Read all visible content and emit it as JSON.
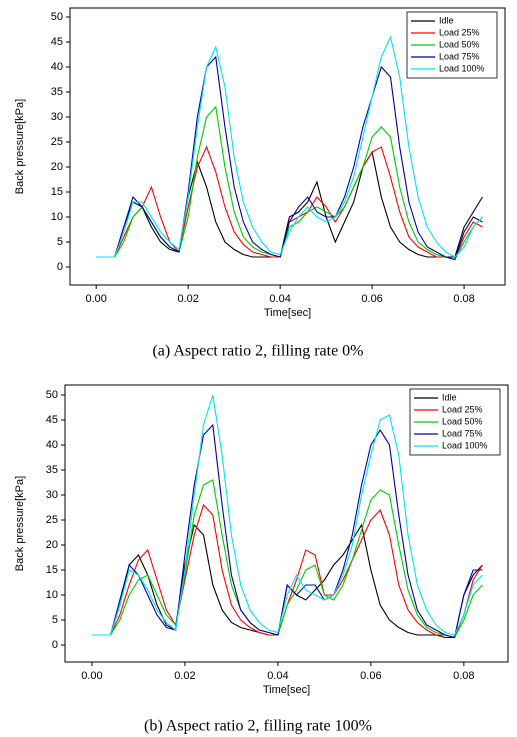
{
  "chart_data": [
    {
      "type": "line",
      "caption": "(a)  Aspect ratio 2,  filling rate  0%",
      "xlabel": "Time[sec]",
      "ylabel": "Back pressure[kPa]",
      "x": [
        0,
        0.002,
        0.004,
        0.006,
        0.008,
        0.01,
        0.012,
        0.014,
        0.016,
        0.018,
        0.02,
        0.022,
        0.024,
        0.026,
        0.028,
        0.03,
        0.032,
        0.034,
        0.036,
        0.038,
        0.04,
        0.042,
        0.044,
        0.046,
        0.048,
        0.05,
        0.052,
        0.054,
        0.056,
        0.058,
        0.06,
        0.062,
        0.064,
        0.066,
        0.068,
        0.07,
        0.072,
        0.074,
        0.076,
        0.078,
        0.08,
        0.082,
        0.084
      ],
      "xlim": [
        -0.0057,
        0.0889
      ],
      "xticks": [
        {
          "value": 0,
          "label": "0.00"
        },
        0.02,
        0.04,
        0.06,
        0.08
      ],
      "ylim": [
        -3.6,
        51.8
      ],
      "yticks": [
        0,
        5,
        10,
        15,
        20,
        25,
        30,
        35,
        40,
        45,
        50
      ],
      "grid": false,
      "legend": "upper right",
      "series": [
        {
          "name": "Idle",
          "color": "#000000",
          "values": [
            2,
            2,
            2,
            8,
            13,
            12,
            8,
            5,
            3.5,
            3,
            14,
            21,
            16,
            9,
            5,
            3.5,
            2.5,
            2,
            2,
            2,
            2,
            10,
            11,
            13,
            17,
            10,
            5,
            9,
            13,
            20,
            23,
            14,
            8,
            5,
            3.5,
            2.5,
            2,
            2,
            2,
            2,
            8,
            11,
            14
          ]
        },
        {
          "name": "Load 25%",
          "color": "#ff0000",
          "values": [
            2,
            2,
            2,
            6,
            10,
            12,
            16,
            10,
            5,
            3,
            12,
            20,
            24,
            19,
            12,
            7,
            4.5,
            3,
            2.5,
            2,
            2,
            9,
            10,
            11,
            14,
            12,
            9,
            12,
            16,
            20,
            23,
            24,
            18,
            11,
            6,
            4,
            3,
            2,
            2,
            1.5,
            6,
            9,
            8
          ]
        },
        {
          "name": "Load 50%",
          "color": "#00cc00",
          "values": [
            2,
            2,
            2,
            5,
            10,
            12,
            9,
            6,
            4,
            3,
            10,
            22,
            30,
            32,
            20,
            11,
            6,
            4,
            3,
            2.5,
            2,
            8,
            9,
            11,
            12,
            11,
            10,
            12,
            16,
            20,
            26,
            28,
            26,
            16,
            9,
            5,
            3.5,
            2.5,
            2,
            1.5,
            5,
            8,
            10
          ]
        },
        {
          "name": "Load 75%",
          "color": "#0000aa",
          "values": [
            2,
            2,
            2,
            8,
            14,
            12,
            9,
            6,
            4,
            3,
            15,
            30,
            40,
            42,
            28,
            16,
            9,
            5,
            3.5,
            2.5,
            2,
            9,
            12,
            14,
            11,
            10,
            10,
            14,
            20,
            28,
            34,
            40,
            38,
            24,
            13,
            7,
            4,
            3,
            2,
            1.5,
            7,
            10,
            9
          ]
        },
        {
          "name": "Load 100%",
          "color": "#00e5ee",
          "values": [
            2,
            2,
            2,
            7,
            13,
            13,
            10,
            7,
            5,
            3.5,
            14,
            28,
            40,
            44,
            36,
            22,
            13,
            8,
            5,
            3,
            2.5,
            7,
            10,
            12,
            10,
            9,
            10,
            13,
            18,
            26,
            34,
            42,
            46,
            38,
            24,
            14,
            8,
            5,
            3,
            2,
            4,
            8,
            10
          ]
        }
      ]
    },
    {
      "type": "line",
      "caption": "(b)  Aspect ratio 2,  filling rate  100%",
      "xlabel": "Time[sec]",
      "ylabel": "Back pressure[kPa]",
      "x": [
        0,
        0.002,
        0.004,
        0.006,
        0.008,
        0.01,
        0.012,
        0.014,
        0.016,
        0.018,
        0.02,
        0.022,
        0.024,
        0.026,
        0.028,
        0.03,
        0.032,
        0.034,
        0.036,
        0.038,
        0.04,
        0.042,
        0.044,
        0.046,
        0.048,
        0.05,
        0.052,
        0.054,
        0.056,
        0.058,
        0.06,
        0.062,
        0.064,
        0.066,
        0.068,
        0.07,
        0.072,
        0.074,
        0.076,
        0.078,
        0.08,
        0.082,
        0.084
      ],
      "xlim": [
        -0.0058,
        0.0895
      ],
      "xticks": [
        {
          "value": 0,
          "label": "0.00"
        },
        0.02,
        0.04,
        0.06,
        0.08
      ],
      "ylim": [
        -3.4,
        52
      ],
      "yticks": [
        0,
        5,
        10,
        15,
        20,
        25,
        30,
        35,
        40,
        45,
        50
      ],
      "grid": false,
      "legend": "upper right",
      "series": [
        {
          "name": "Idle",
          "color": "#000000",
          "values": [
            2,
            2,
            2,
            8,
            16,
            18,
            14,
            8,
            4,
            3,
            16,
            24,
            22,
            12,
            7,
            4.5,
            3.5,
            3,
            2.5,
            2,
            2,
            12,
            10,
            9,
            11,
            13,
            16,
            18,
            21,
            24,
            15,
            8,
            5,
            3.5,
            2.5,
            2,
            2,
            2,
            1.5,
            1.5,
            10,
            14,
            16
          ]
        },
        {
          "name": "Load 25%",
          "color": "#ff0000",
          "values": [
            2,
            2,
            2,
            6,
            12,
            17,
            19,
            13,
            7,
            4,
            13,
            22,
            28,
            26,
            15,
            8,
            5,
            3.5,
            2.5,
            2,
            2,
            8,
            13,
            19,
            18,
            10,
            10,
            13,
            17,
            21,
            25,
            27,
            22,
            12,
            7,
            4.5,
            3,
            2,
            2,
            1.5,
            6,
            13,
            16
          ]
        },
        {
          "name": "Load 50%",
          "color": "#00cc00",
          "values": [
            2,
            2,
            2,
            5,
            10,
            13,
            14,
            10,
            6,
            4,
            14,
            26,
            32,
            33,
            22,
            12,
            7,
            4.5,
            3,
            2.5,
            2,
            8,
            11,
            15,
            16,
            10,
            9,
            12,
            17,
            23,
            29,
            31,
            30,
            20,
            11,
            6,
            3.5,
            2.5,
            2,
            1.5,
            5,
            10,
            12
          ]
        },
        {
          "name": "Load 75%",
          "color": "#0000aa",
          "values": [
            2,
            2,
            2,
            9,
            16,
            14,
            10,
            6,
            3.5,
            3,
            18,
            32,
            42,
            44,
            28,
            14,
            7,
            4.5,
            3,
            2.5,
            2,
            12,
            10,
            12,
            12,
            9,
            10,
            15,
            22,
            32,
            40,
            43,
            40,
            26,
            14,
            7,
            4,
            3,
            2,
            1.5,
            10,
            15,
            15
          ]
        },
        {
          "name": "Load 100%",
          "color": "#00e5ee",
          "values": [
            2,
            2,
            2,
            8,
            15,
            14,
            11,
            7,
            4.5,
            3,
            15,
            30,
            44,
            50,
            38,
            22,
            12,
            7,
            4.5,
            3,
            2.5,
            10,
            14,
            11,
            10,
            9,
            10,
            14,
            20,
            30,
            38,
            45,
            46,
            38,
            22,
            12,
            7,
            4,
            2.5,
            2,
            6,
            12,
            14
          ]
        }
      ]
    }
  ]
}
